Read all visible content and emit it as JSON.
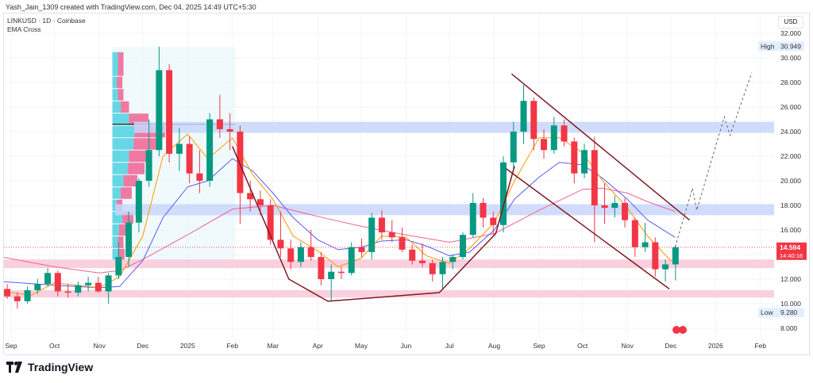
{
  "credit": "Yash_Jain_1309 created with TradingView.com, Dec 04, 2025 14:49 UTC+5:30",
  "symbol_line": "LINKUSD · 1D · Coinbase",
  "indicator": "EMA Cross",
  "currency": "USD",
  "brand": "TradingView",
  "colors": {
    "up": "#089981",
    "down": "#f23645",
    "ema_fast": "#ff9800",
    "ema_mid": "#5b5cf6",
    "ema_slow": "#f06292",
    "drawing": "#801922",
    "zone_blue": "#c9d6fb",
    "zone_pink": "#f8c8d8"
  },
  "chart_data": {
    "type": "candlestick",
    "title": "LINKUSD · 1D · Coinbase",
    "ylim": [
      7,
      32.5
    ],
    "y_ticks": [
      "32.000",
      "30.000",
      "28.000",
      "26.000",
      "24.000",
      "22.000",
      "20.000",
      "18.000",
      "16.000",
      "12.000",
      "10.000",
      "8.000"
    ],
    "x_ticks": [
      {
        "label": "Sep",
        "date": "2024-09-01"
      },
      {
        "label": "Oct",
        "date": "2024-10-01"
      },
      {
        "label": "Nov",
        "date": "2024-11-01"
      },
      {
        "label": "Dec",
        "date": "2024-12-01"
      },
      {
        "label": "2025",
        "date": "2025-01-01"
      },
      {
        "label": "Feb",
        "date": "2025-02-01"
      },
      {
        "label": "Mar",
        "date": "2025-03-01"
      },
      {
        "label": "Apr",
        "date": "2025-04-01"
      },
      {
        "label": "May",
        "date": "2025-05-01"
      },
      {
        "label": "Jun",
        "date": "2025-06-01"
      },
      {
        "label": "Jul",
        "date": "2025-07-01"
      },
      {
        "label": "Aug",
        "date": "2025-08-01"
      },
      {
        "label": "Sep",
        "date": "2025-09-01"
      },
      {
        "label": "Oct",
        "date": "2025-10-01"
      },
      {
        "label": "Nov",
        "date": "2025-11-01"
      },
      {
        "label": "Dec",
        "date": "2025-12-01"
      },
      {
        "label": "2026",
        "date": "2026-01-01"
      },
      {
        "label": "Feb",
        "date": "2026-02-01"
      }
    ],
    "high": {
      "label": "High",
      "value": "30.949"
    },
    "low": {
      "label": "Low",
      "value": "9.280"
    },
    "last": {
      "price": "14.594",
      "countdown": "14:40:16",
      "value": 14.594
    },
    "candles": [
      [
        "2024-08-26",
        11.2,
        11.6,
        10.4,
        10.6
      ],
      [
        "2024-09-02",
        10.6,
        10.9,
        9.6,
        10.2
      ],
      [
        "2024-09-09",
        10.2,
        11.4,
        10.0,
        11.1
      ],
      [
        "2024-09-16",
        11.1,
        12.0,
        10.8,
        11.6
      ],
      [
        "2024-09-23",
        11.6,
        12.9,
        11.4,
        12.5
      ],
      [
        "2024-09-30",
        12.5,
        12.7,
        10.6,
        11.0
      ],
      [
        "2024-10-07",
        11.0,
        11.6,
        10.5,
        10.9
      ],
      [
        "2024-10-14",
        10.9,
        11.8,
        10.6,
        11.5
      ],
      [
        "2024-10-21",
        11.5,
        12.2,
        11.0,
        11.7
      ],
      [
        "2024-10-28",
        11.7,
        12.2,
        10.9,
        11.0
      ],
      [
        "2024-11-04",
        11.0,
        12.5,
        10.0,
        12.3
      ],
      [
        "2024-11-11",
        12.3,
        15.0,
        12.0,
        13.8
      ],
      [
        "2024-11-18",
        13.8,
        17.5,
        13.0,
        16.6
      ],
      [
        "2024-11-25",
        16.6,
        20.2,
        15.8,
        20.0
      ],
      [
        "2024-12-02",
        20.0,
        25.0,
        19.5,
        22.5
      ],
      [
        "2024-12-09",
        22.5,
        30.9,
        22.0,
        29.0
      ],
      [
        "2024-12-16",
        29.0,
        29.5,
        21.5,
        22.2
      ],
      [
        "2024-12-23",
        22.2,
        24.3,
        20.8,
        23.0
      ],
      [
        "2024-12-30",
        23.0,
        23.6,
        19.8,
        20.6
      ],
      [
        "2025-01-06",
        20.6,
        22.5,
        19.0,
        20.0
      ],
      [
        "2025-01-13",
        20.0,
        25.5,
        19.5,
        25.0
      ],
      [
        "2025-01-20",
        25.0,
        27.0,
        23.5,
        24.2
      ],
      [
        "2025-01-27",
        24.2,
        25.5,
        22.5,
        24.0
      ],
      [
        "2025-02-03",
        24.0,
        24.5,
        16.5,
        19.0
      ],
      [
        "2025-02-10",
        19.0,
        20.0,
        17.5,
        18.5
      ],
      [
        "2025-02-17",
        18.5,
        19.2,
        17.2,
        18.0
      ],
      [
        "2025-02-24",
        18.0,
        18.5,
        14.8,
        15.2
      ],
      [
        "2025-03-03",
        15.2,
        17.5,
        13.8,
        14.5
      ],
      [
        "2025-03-10",
        14.5,
        15.2,
        12.8,
        13.4
      ],
      [
        "2025-03-17",
        13.4,
        15.0,
        13.0,
        14.6
      ],
      [
        "2025-03-24",
        14.6,
        16.0,
        13.5,
        13.8
      ],
      [
        "2025-03-31",
        13.8,
        14.2,
        11.5,
        12.0
      ],
      [
        "2025-04-07",
        12.0,
        13.2,
        10.2,
        12.6
      ],
      [
        "2025-04-14",
        12.6,
        13.0,
        12.0,
        12.5
      ],
      [
        "2025-04-21",
        12.5,
        15.0,
        12.3,
        14.6
      ],
      [
        "2025-04-28",
        14.6,
        15.3,
        13.8,
        14.2
      ],
      [
        "2025-05-05",
        14.2,
        17.4,
        13.6,
        17.0
      ],
      [
        "2025-05-12",
        17.0,
        17.6,
        15.2,
        15.8
      ],
      [
        "2025-05-19",
        15.8,
        16.8,
        15.0,
        15.4
      ],
      [
        "2025-05-26",
        15.4,
        16.2,
        14.2,
        14.4
      ],
      [
        "2025-06-02",
        14.4,
        14.8,
        13.2,
        13.5
      ],
      [
        "2025-06-09",
        13.5,
        14.9,
        13.0,
        13.3
      ],
      [
        "2025-06-16",
        13.3,
        13.6,
        11.8,
        12.4
      ],
      [
        "2025-06-23",
        12.4,
        13.8,
        11.2,
        13.4
      ],
      [
        "2025-06-30",
        13.4,
        14.0,
        12.8,
        13.8
      ],
      [
        "2025-07-07",
        13.8,
        15.8,
        13.6,
        15.6
      ],
      [
        "2025-07-14",
        15.6,
        19.0,
        15.4,
        18.2
      ],
      [
        "2025-07-21",
        18.2,
        18.6,
        16.2,
        17.0
      ],
      [
        "2025-07-28",
        17.0,
        17.5,
        15.6,
        16.4
      ],
      [
        "2025-08-04",
        16.4,
        22.0,
        15.8,
        21.5
      ],
      [
        "2025-08-11",
        21.5,
        24.8,
        20.8,
        24.0
      ],
      [
        "2025-08-18",
        24.0,
        27.8,
        23.0,
        26.5
      ],
      [
        "2025-08-25",
        26.5,
        26.8,
        22.5,
        23.4
      ],
      [
        "2025-09-01",
        23.4,
        24.2,
        21.8,
        22.5
      ],
      [
        "2025-09-08",
        22.5,
        25.2,
        22.2,
        24.5
      ],
      [
        "2025-09-15",
        24.5,
        25.0,
        22.8,
        23.2
      ],
      [
        "2025-09-22",
        23.2,
        23.5,
        19.8,
        20.6
      ],
      [
        "2025-09-29",
        20.6,
        23.0,
        20.2,
        22.5
      ],
      [
        "2025-10-06",
        22.5,
        23.6,
        15.0,
        18.0
      ],
      [
        "2025-10-13",
        18.0,
        19.8,
        16.5,
        17.8
      ],
      [
        "2025-10-20",
        17.8,
        18.8,
        17.0,
        18.2
      ],
      [
        "2025-10-27",
        18.2,
        18.6,
        16.2,
        16.8
      ],
      [
        "2025-11-03",
        16.8,
        17.0,
        13.8,
        14.6
      ],
      [
        "2025-11-10",
        14.6,
        16.6,
        14.2,
        15.0
      ],
      [
        "2025-11-17",
        15.0,
        15.4,
        12.2,
        12.8
      ],
      [
        "2025-11-24",
        12.8,
        13.6,
        11.8,
        13.2
      ],
      [
        "2025-12-01",
        13.2,
        14.8,
        11.9,
        14.594
      ]
    ],
    "ema_fast": [
      [
        "2024-08-26",
        11.0
      ],
      [
        "2024-09-15",
        10.7
      ],
      [
        "2024-10-01",
        11.7
      ],
      [
        "2024-11-01",
        11.3
      ],
      [
        "2024-11-15",
        12.2
      ],
      [
        "2024-12-01",
        15.5
      ],
      [
        "2024-12-15",
        22.0
      ],
      [
        "2025-01-01",
        23.8
      ],
      [
        "2025-01-15",
        21.8
      ],
      [
        "2025-02-01",
        23.5
      ],
      [
        "2025-02-15",
        20.5
      ],
      [
        "2025-03-01",
        18.5
      ],
      [
        "2025-03-15",
        15.5
      ],
      [
        "2025-04-01",
        14.3
      ],
      [
        "2025-04-15",
        13.0
      ],
      [
        "2025-05-01",
        13.7
      ],
      [
        "2025-05-15",
        15.5
      ],
      [
        "2025-06-01",
        15.4
      ],
      [
        "2025-06-15",
        13.9
      ],
      [
        "2025-07-01",
        13.3
      ],
      [
        "2025-07-15",
        14.5
      ],
      [
        "2025-08-01",
        16.6
      ],
      [
        "2025-08-15",
        20.0
      ],
      [
        "2025-09-01",
        23.5
      ],
      [
        "2025-09-15",
        23.5
      ],
      [
        "2025-10-01",
        22.3
      ],
      [
        "2025-10-15",
        20.0
      ],
      [
        "2025-11-01",
        17.8
      ],
      [
        "2025-11-15",
        15.5
      ],
      [
        "2025-12-01",
        13.5
      ],
      [
        "2025-12-04",
        13.6
      ]
    ],
    "ema_mid": [
      [
        "2024-08-26",
        11.8
      ],
      [
        "2024-10-01",
        11.5
      ],
      [
        "2024-11-01",
        11.3
      ],
      [
        "2024-11-15",
        11.4
      ],
      [
        "2024-12-01",
        13.5
      ],
      [
        "2024-12-15",
        17.0
      ],
      [
        "2025-01-01",
        19.5
      ],
      [
        "2025-01-15",
        20.0
      ],
      [
        "2025-02-01",
        21.8
      ],
      [
        "2025-02-15",
        20.8
      ],
      [
        "2025-03-01",
        19.0
      ],
      [
        "2025-03-15",
        17.0
      ],
      [
        "2025-04-01",
        15.2
      ],
      [
        "2025-04-15",
        14.4
      ],
      [
        "2025-05-01",
        14.6
      ],
      [
        "2025-05-15",
        15.1
      ],
      [
        "2025-06-01",
        15.2
      ],
      [
        "2025-06-15",
        14.7
      ],
      [
        "2025-07-01",
        13.9
      ],
      [
        "2025-07-15",
        14.2
      ],
      [
        "2025-08-01",
        16.0
      ],
      [
        "2025-08-15",
        18.5
      ],
      [
        "2025-09-01",
        20.3
      ],
      [
        "2025-09-15",
        21.5
      ],
      [
        "2025-10-01",
        21.3
      ],
      [
        "2025-10-15",
        20.2
      ],
      [
        "2025-11-01",
        18.5
      ],
      [
        "2025-11-15",
        16.8
      ],
      [
        "2025-12-04",
        15.4
      ]
    ],
    "ema_slow": [
      [
        "2024-08-26",
        13.8
      ],
      [
        "2024-10-01",
        13.0
      ],
      [
        "2024-11-01",
        12.5
      ],
      [
        "2024-11-15",
        12.7
      ],
      [
        "2024-12-01",
        13.6
      ],
      [
        "2025-01-01",
        15.6
      ],
      [
        "2025-02-01",
        17.7
      ],
      [
        "2025-03-01",
        18.0
      ],
      [
        "2025-04-01",
        17.1
      ],
      [
        "2025-05-01",
        16.3
      ],
      [
        "2025-06-01",
        15.6
      ],
      [
        "2025-07-01",
        15.0
      ],
      [
        "2025-08-01",
        15.7
      ],
      [
        "2025-09-01",
        17.6
      ],
      [
        "2025-10-01",
        19.3
      ],
      [
        "2025-10-15",
        19.4
      ],
      [
        "2025-11-01",
        19.0
      ],
      [
        "2025-11-15",
        18.3
      ],
      [
        "2025-12-04",
        17.5
      ]
    ],
    "zones": [
      {
        "kind": "resistance",
        "from": "2024-11-25",
        "y": [
          23.9,
          24.8
        ]
      },
      {
        "kind": "resistance",
        "from": "2024-11-12",
        "y": [
          17.2,
          18.1
        ]
      },
      {
        "kind": "support",
        "from": "2024-08-24",
        "y": [
          12.9,
          13.6
        ]
      },
      {
        "kind": "support",
        "from": "2024-08-24",
        "y": [
          10.5,
          11.1
        ]
      }
    ],
    "volume_profile": {
      "from": "2024-11-10",
      "to": "2025-02-03",
      "rows": [
        [
          28.5,
          30.5,
          0.1,
          0.1
        ],
        [
          27.5,
          28.5,
          0.08,
          0.1
        ],
        [
          26.5,
          27.5,
          0.1,
          0.1
        ],
        [
          25.5,
          26.5,
          0.15,
          0.15
        ],
        [
          24.5,
          25.5,
          0.3,
          0.35
        ],
        [
          23.5,
          24.5,
          0.4,
          0.55
        ],
        [
          22.5,
          23.5,
          0.38,
          0.5
        ],
        [
          21.5,
          22.5,
          0.3,
          0.35
        ],
        [
          20.5,
          21.5,
          0.28,
          0.3
        ],
        [
          19.5,
          20.5,
          0.2,
          0.25
        ],
        [
          18.5,
          19.5,
          0.15,
          0.2
        ],
        [
          17.5,
          18.5,
          0.08,
          0.1
        ],
        [
          16.5,
          17.5,
          0.18,
          0.2
        ],
        [
          15.5,
          16.5,
          0.12,
          0.12
        ],
        [
          14.5,
          15.5,
          0.1,
          0.1
        ],
        [
          13.5,
          14.5,
          0.12,
          0.1
        ]
      ],
      "poc": 24.6
    },
    "drawings": {
      "cup": [
        [
          "2025-02-01",
          22.8
        ],
        [
          "2025-03-12",
          12.0
        ],
        [
          "2025-04-08",
          10.2
        ],
        [
          "2025-06-24",
          10.9
        ],
        [
          "2025-08-02",
          15.7
        ],
        [
          "2025-08-15",
          21.2
        ]
      ],
      "channel_upper": [
        [
          "2025-08-13",
          28.7
        ],
        [
          "2025-12-14",
          16.8
        ]
      ],
      "channel_lower": [
        [
          "2025-08-09",
          21.0
        ],
        [
          "2025-11-30",
          11.2
        ]
      ],
      "projection": [
        [
          "2025-12-04",
          14.6
        ],
        [
          "2025-12-16",
          19.4
        ],
        [
          "2025-12-19",
          17.6
        ],
        [
          "2026-01-07",
          25.2
        ],
        [
          "2026-01-11",
          23.7
        ],
        [
          "2026-01-26",
          28.8
        ]
      ]
    }
  }
}
